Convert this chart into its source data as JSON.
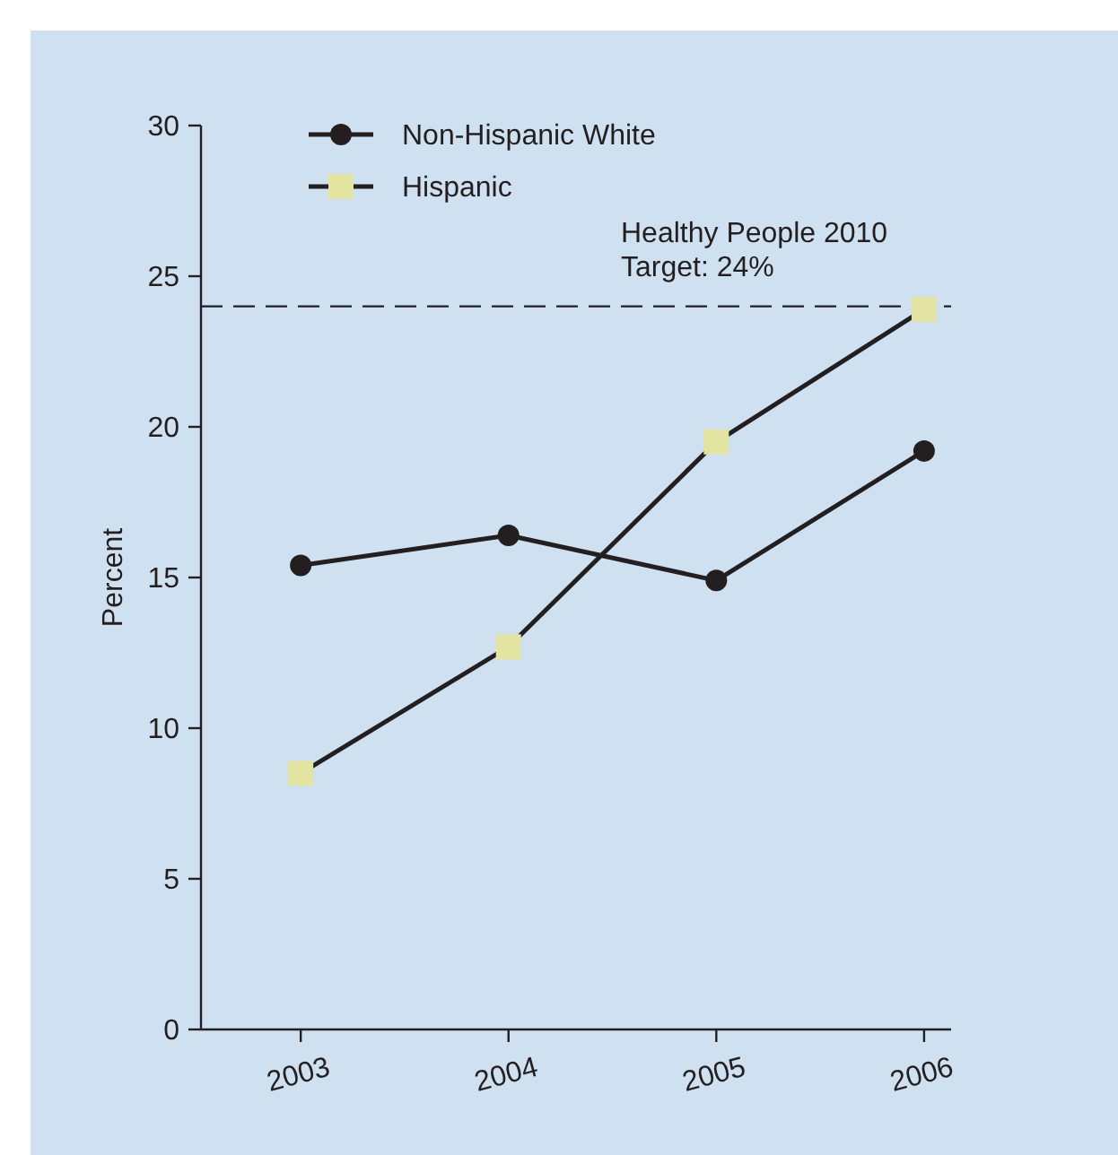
{
  "chart_data": {
    "type": "line",
    "ylabel": "Percent",
    "categories": [
      "2003",
      "2004",
      "2005",
      "2006"
    ],
    "series": [
      {
        "name": "Non-Hispanic White",
        "color": "#231f20",
        "marker": "circle",
        "values": [
          15.4,
          16.4,
          14.9,
          19.2
        ]
      },
      {
        "name": "Hispanic",
        "color": "#e4e4a2",
        "marker": "square",
        "values": [
          8.5,
          12.7,
          19.5,
          23.9
        ]
      }
    ],
    "ylim": [
      0,
      30
    ],
    "yticks": [
      0,
      5,
      10,
      15,
      20,
      25,
      30
    ],
    "grid": false,
    "legend": "top left",
    "ref_lines": [
      {
        "axis": "y",
        "value": 24,
        "label": "Healthy People 2010\nTarget: 24%",
        "line_style": "dashed",
        "color": "#231f20"
      }
    ]
  }
}
